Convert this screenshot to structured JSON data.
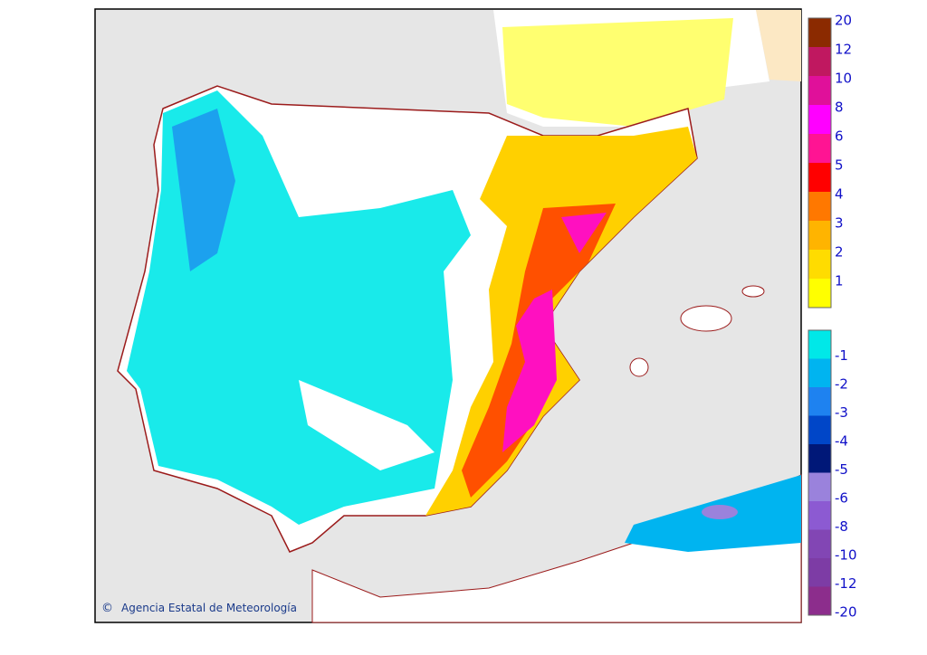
{
  "map": {
    "credit_symbol": "©",
    "credit": "Agencia Estatal de Meteorología"
  },
  "legend": {
    "positive": [
      {
        "label": "20",
        "color": "#8b2a00"
      },
      {
        "label": "12",
        "color": "#c01860"
      },
      {
        "label": "10",
        "color": "#e0109a"
      },
      {
        "label": "8",
        "color": "#ff00ff"
      },
      {
        "label": "6",
        "color": "#ff1493"
      },
      {
        "label": "5",
        "color": "#ff0000"
      },
      {
        "label": "4",
        "color": "#ff7800"
      },
      {
        "label": "3",
        "color": "#ffb400"
      },
      {
        "label": "2",
        "color": "#ffdc00"
      },
      {
        "label": "1",
        "color": "#ffff00"
      }
    ],
    "negative": [
      {
        "label": "-1",
        "color": "#00e8e8"
      },
      {
        "label": "-2",
        "color": "#00b4f0"
      },
      {
        "label": "-3",
        "color": "#1e82f0"
      },
      {
        "label": "-4",
        "color": "#0046c8"
      },
      {
        "label": "-5",
        "color": "#001878"
      },
      {
        "label": "-6",
        "color": "#9a82dc"
      },
      {
        "label": "-8",
        "color": "#8c5ad2"
      },
      {
        "label": "-10",
        "color": "#8246b4"
      },
      {
        "label": "-12",
        "color": "#7d3ca5"
      },
      {
        "label": "-20",
        "color": "#8c2d8c"
      }
    ]
  }
}
